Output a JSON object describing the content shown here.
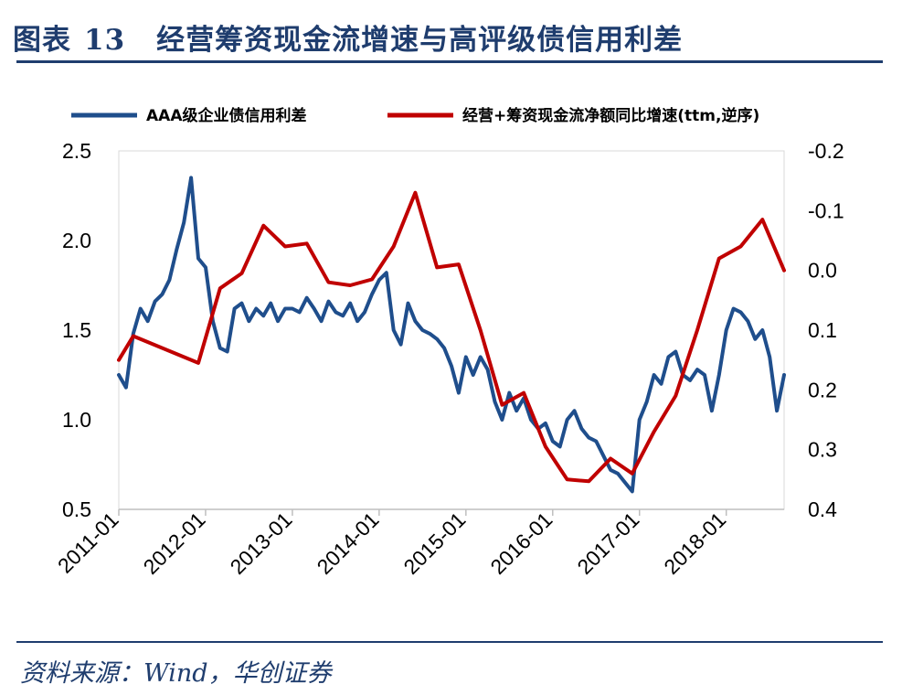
{
  "figure": {
    "label": "图表",
    "number": "13",
    "title": "经营筹资现金流增速与高评级债信用利差"
  },
  "source": "资料来源：Wind，华创证券",
  "colors": {
    "brand": "#1f3d6e",
    "series1": "#1f4e8c",
    "series2": "#c00000"
  },
  "chart_data": {
    "type": "line",
    "title": "经营筹资现金流增速与高评级债信用利差",
    "legend_position": "top",
    "grid": false,
    "x_ticks": [
      "2011-01",
      "2012-01",
      "2013-01",
      "2014-01",
      "2015-01",
      "2016-01",
      "2017-01",
      "2018-01"
    ],
    "xlim": [
      "2011-01",
      "2018-09"
    ],
    "y_left": {
      "lim": [
        0.5,
        2.5
      ],
      "ticks": [
        "0.5",
        "1.0",
        "1.5",
        "2.0",
        "2.5"
      ]
    },
    "y_right": {
      "lim": [
        -0.2,
        0.4
      ],
      "inverted": true,
      "ticks": [
        "-0.2",
        "-0.1",
        "0.0",
        "0.1",
        "0.2",
        "0.3",
        "0.4"
      ]
    },
    "series": [
      {
        "name": "AAA级企业债信用利差",
        "axis": "left",
        "color": "#1f4e8c",
        "points": [
          [
            "2011-01",
            1.25
          ],
          [
            "2011-02",
            1.18
          ],
          [
            "2011-03",
            1.48
          ],
          [
            "2011-04",
            1.62
          ],
          [
            "2011-05",
            1.55
          ],
          [
            "2011-06",
            1.66
          ],
          [
            "2011-07",
            1.7
          ],
          [
            "2011-08",
            1.78
          ],
          [
            "2011-09",
            1.95
          ],
          [
            "2011-10",
            2.1
          ],
          [
            "2011-11",
            2.35
          ],
          [
            "2011-12",
            1.9
          ],
          [
            "2012-01",
            1.85
          ],
          [
            "2012-02",
            1.55
          ],
          [
            "2012-03",
            1.4
          ],
          [
            "2012-04",
            1.38
          ],
          [
            "2012-05",
            1.62
          ],
          [
            "2012-06",
            1.65
          ],
          [
            "2012-07",
            1.55
          ],
          [
            "2012-08",
            1.62
          ],
          [
            "2012-09",
            1.58
          ],
          [
            "2012-10",
            1.65
          ],
          [
            "2012-11",
            1.55
          ],
          [
            "2012-12",
            1.62
          ],
          [
            "2013-01",
            1.62
          ],
          [
            "2013-02",
            1.6
          ],
          [
            "2013-03",
            1.68
          ],
          [
            "2013-04",
            1.62
          ],
          [
            "2013-05",
            1.55
          ],
          [
            "2013-06",
            1.66
          ],
          [
            "2013-07",
            1.6
          ],
          [
            "2013-08",
            1.58
          ],
          [
            "2013-09",
            1.65
          ],
          [
            "2013-10",
            1.55
          ],
          [
            "2013-11",
            1.6
          ],
          [
            "2013-12",
            1.7
          ],
          [
            "2014-01",
            1.78
          ],
          [
            "2014-02",
            1.82
          ],
          [
            "2014-03",
            1.5
          ],
          [
            "2014-04",
            1.42
          ],
          [
            "2014-05",
            1.65
          ],
          [
            "2014-06",
            1.55
          ],
          [
            "2014-07",
            1.5
          ],
          [
            "2014-08",
            1.48
          ],
          [
            "2014-09",
            1.45
          ],
          [
            "2014-10",
            1.4
          ],
          [
            "2014-11",
            1.3
          ],
          [
            "2014-12",
            1.15
          ],
          [
            "2015-01",
            1.35
          ],
          [
            "2015-02",
            1.25
          ],
          [
            "2015-03",
            1.35
          ],
          [
            "2015-04",
            1.28
          ],
          [
            "2015-05",
            1.1
          ],
          [
            "2015-06",
            1.0
          ],
          [
            "2015-07",
            1.15
          ],
          [
            "2015-08",
            1.05
          ],
          [
            "2015-09",
            1.12
          ],
          [
            "2015-10",
            1.0
          ],
          [
            "2015-11",
            0.95
          ],
          [
            "2015-12",
            0.98
          ],
          [
            "2016-01",
            0.88
          ],
          [
            "2016-02",
            0.85
          ],
          [
            "2016-03",
            1.0
          ],
          [
            "2016-04",
            1.05
          ],
          [
            "2016-05",
            0.95
          ],
          [
            "2016-06",
            0.9
          ],
          [
            "2016-07",
            0.88
          ],
          [
            "2016-08",
            0.8
          ],
          [
            "2016-09",
            0.72
          ],
          [
            "2016-10",
            0.7
          ],
          [
            "2016-11",
            0.65
          ],
          [
            "2016-12",
            0.6
          ],
          [
            "2017-01",
            1.0
          ],
          [
            "2017-02",
            1.1
          ],
          [
            "2017-03",
            1.25
          ],
          [
            "2017-04",
            1.2
          ],
          [
            "2017-05",
            1.35
          ],
          [
            "2017-06",
            1.38
          ],
          [
            "2017-07",
            1.25
          ],
          [
            "2017-08",
            1.22
          ],
          [
            "2017-09",
            1.28
          ],
          [
            "2017-10",
            1.25
          ],
          [
            "2017-11",
            1.05
          ],
          [
            "2017-12",
            1.25
          ],
          [
            "2018-01",
            1.5
          ],
          [
            "2018-02",
            1.62
          ],
          [
            "2018-03",
            1.6
          ],
          [
            "2018-04",
            1.55
          ],
          [
            "2018-05",
            1.45
          ],
          [
            "2018-06",
            1.5
          ],
          [
            "2018-07",
            1.35
          ],
          [
            "2018-08",
            1.05
          ],
          [
            "2018-09",
            1.25
          ]
        ]
      },
      {
        "name": "经营+筹资现金流净额同比增速(ttm,逆序)",
        "axis": "right",
        "color": "#c00000",
        "points": [
          [
            "2011-01",
            0.15
          ],
          [
            "2011-03",
            0.11
          ],
          [
            "2011-12",
            0.155
          ],
          [
            "2012-03",
            0.03
          ],
          [
            "2012-06",
            0.005
          ],
          [
            "2012-09",
            -0.075
          ],
          [
            "2012-12",
            -0.04
          ],
          [
            "2013-03",
            -0.045
          ],
          [
            "2013-06",
            0.02
          ],
          [
            "2013-09",
            0.025
          ],
          [
            "2013-12",
            0.015
          ],
          [
            "2014-03",
            -0.04
          ],
          [
            "2014-06",
            -0.13
          ],
          [
            "2014-09",
            -0.005
          ],
          [
            "2014-12",
            -0.01
          ],
          [
            "2015-03",
            0.1
          ],
          [
            "2015-06",
            0.225
          ],
          [
            "2015-09",
            0.205
          ],
          [
            "2015-12",
            0.295
          ],
          [
            "2016-03",
            0.35
          ],
          [
            "2016-06",
            0.353
          ],
          [
            "2016-09",
            0.315
          ],
          [
            "2016-12",
            0.34
          ],
          [
            "2017-03",
            0.27
          ],
          [
            "2017-06",
            0.21
          ],
          [
            "2017-09",
            0.1
          ],
          [
            "2017-12",
            -0.02
          ],
          [
            "2018-03",
            -0.04
          ],
          [
            "2018-06",
            -0.085
          ],
          [
            "2018-09",
            0.0
          ]
        ]
      }
    ]
  }
}
